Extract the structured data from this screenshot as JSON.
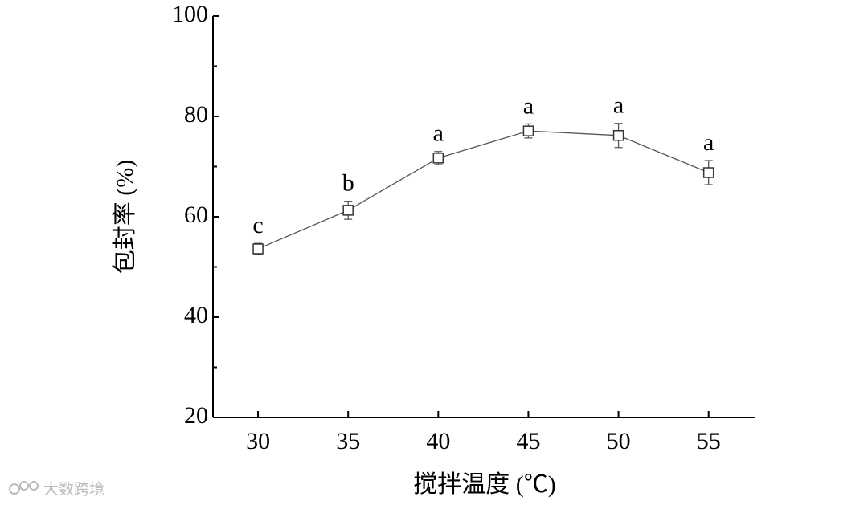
{
  "chart_data": {
    "type": "line",
    "x_label": "搅拌温度 (℃)",
    "y_label": "包封率 (%)",
    "x": [
      30,
      35,
      40,
      45,
      50,
      55
    ],
    "series": [
      {
        "color": "#555555",
        "values": [
          53.6,
          61.3,
          71.7,
          77.1,
          76.2,
          68.8
        ],
        "errors": [
          1.1,
          1.8,
          1.3,
          1.4,
          2.4,
          2.4
        ],
        "annotations": [
          "c",
          "b",
          "a",
          "a",
          "a",
          "a"
        ]
      }
    ],
    "xlim": [
      27.5,
      57.6
    ],
    "ylim": [
      20,
      100
    ],
    "xticks": [
      30,
      35,
      40,
      45,
      50,
      55
    ],
    "yticks": [
      20,
      40,
      60,
      80,
      100
    ],
    "y_minor_ticks": [
      30,
      50,
      70,
      90
    ],
    "watermark": "大数跨境"
  }
}
